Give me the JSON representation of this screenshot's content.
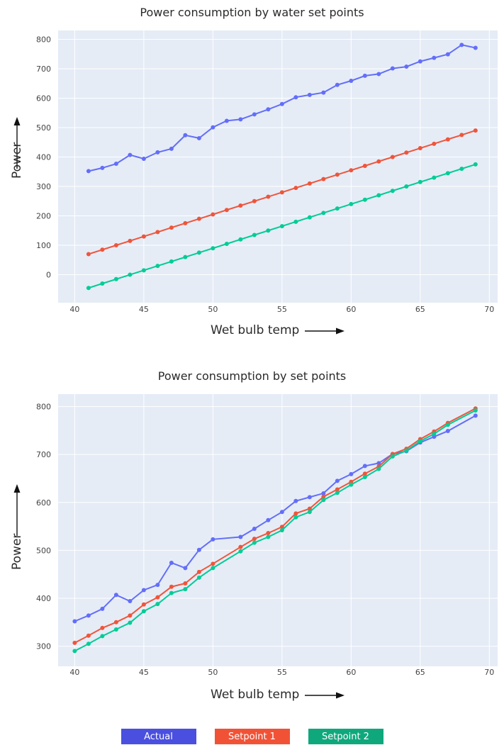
{
  "chart_data": [
    {
      "type": "line",
      "title": "Power consumption by water set points",
      "xlabel": "Wet bulb temp",
      "ylabel": "Power",
      "xlim": [
        38.8,
        70.6
      ],
      "ylim": [
        -95,
        830
      ],
      "xticks": [
        40,
        45,
        50,
        55,
        60,
        65,
        70
      ],
      "yticks": [
        0,
        100,
        200,
        300,
        400,
        500,
        600,
        700,
        800
      ],
      "grid": true,
      "series": [
        {
          "color": "#636efa",
          "x": [
            41,
            42,
            43,
            44,
            45,
            46,
            47,
            48,
            49,
            50,
            51,
            52,
            53,
            54,
            55,
            56,
            57,
            58,
            59,
            60,
            61,
            62,
            63,
            64,
            65,
            66,
            67,
            68,
            69
          ],
          "y": [
            352,
            363,
            377,
            407,
            394,
            416,
            428,
            474,
            464,
            501,
            523,
            528,
            545,
            562,
            580,
            603,
            611,
            619,
            645,
            659,
            676,
            682,
            701,
            707,
            725,
            737,
            749,
            781,
            771
          ]
        },
        {
          "color": "#ef553b",
          "x": [
            41,
            42,
            43,
            44,
            45,
            46,
            47,
            48,
            49,
            50,
            51,
            52,
            53,
            54,
            55,
            56,
            57,
            58,
            59,
            60,
            61,
            62,
            63,
            64,
            65,
            66,
            67,
            68,
            69
          ],
          "y": [
            70,
            85,
            100,
            115,
            130,
            145,
            160,
            175,
            190,
            205,
            220,
            235,
            250,
            265,
            280,
            295,
            310,
            325,
            340,
            355,
            370,
            385,
            400,
            415,
            430,
            445,
            460,
            475,
            490
          ]
        },
        {
          "color": "#00cc96",
          "x": [
            41,
            42,
            43,
            44,
            45,
            46,
            47,
            48,
            49,
            50,
            51,
            52,
            53,
            54,
            55,
            56,
            57,
            58,
            59,
            60,
            61,
            62,
            63,
            64,
            65,
            66,
            67,
            68,
            69
          ],
          "y": [
            -45,
            -30,
            -15,
            0,
            15,
            30,
            45,
            60,
            75,
            90,
            105,
            120,
            135,
            150,
            165,
            180,
            195,
            210,
            225,
            240,
            255,
            270,
            285,
            300,
            315,
            330,
            345,
            360,
            375
          ]
        }
      ]
    },
    {
      "type": "line",
      "title": "Power consumption by set points",
      "xlabel": "Wet bulb temp",
      "ylabel": "Power",
      "xlim": [
        38.8,
        70.6
      ],
      "ylim": [
        258,
        826
      ],
      "xticks": [
        40,
        45,
        50,
        55,
        60,
        65,
        70
      ],
      "yticks": [
        300,
        400,
        500,
        600,
        700,
        800
      ],
      "grid": true,
      "series": [
        {
          "name": "Actual",
          "color": "#636efa",
          "x": [
            40,
            41,
            42,
            43,
            44,
            45,
            46,
            47,
            48,
            49,
            50,
            52,
            53,
            54,
            55,
            56,
            57,
            58,
            59,
            60,
            61,
            62,
            63,
            64,
            65,
            66,
            67,
            69
          ],
          "y": [
            352,
            364,
            378,
            407,
            394,
            417,
            428,
            474,
            463,
            501,
            523,
            528,
            545,
            563,
            580,
            603,
            611,
            619,
            645,
            659,
            676,
            682,
            701,
            707,
            725,
            737,
            749,
            781
          ]
        },
        {
          "name": "Setpoint 1",
          "color": "#ef553b",
          "x": [
            40,
            41,
            42,
            43,
            44,
            45,
            46,
            47,
            48,
            49,
            50,
            52,
            53,
            54,
            55,
            56,
            57,
            58,
            59,
            60,
            61,
            62,
            63,
            64,
            65,
            66,
            67,
            69
          ],
          "y": [
            307,
            322,
            338,
            350,
            364,
            387,
            402,
            424,
            431,
            455,
            472,
            507,
            524,
            536,
            549,
            577,
            587,
            612,
            627,
            643,
            660,
            675,
            701,
            712,
            732,
            748,
            766,
            796
          ]
        },
        {
          "name": "Setpoint 2",
          "color": "#00cc96",
          "x": [
            40,
            41,
            42,
            43,
            44,
            45,
            46,
            47,
            48,
            49,
            50,
            52,
            53,
            54,
            55,
            56,
            57,
            58,
            59,
            60,
            61,
            62,
            63,
            64,
            65,
            66,
            67,
            69
          ],
          "y": [
            290,
            305,
            321,
            335,
            349,
            373,
            388,
            411,
            419,
            443,
            463,
            498,
            516,
            528,
            542,
            569,
            580,
            605,
            620,
            637,
            653,
            670,
            696,
            708,
            728,
            743,
            762,
            792
          ]
        }
      ]
    }
  ],
  "legend": {
    "items": [
      {
        "label": "Actual",
        "color": "#4a4fe0"
      },
      {
        "label": "Setpoint 1",
        "color": "#f15236"
      },
      {
        "label": "Setpoint 2",
        "color": "#0fa87d"
      }
    ]
  }
}
